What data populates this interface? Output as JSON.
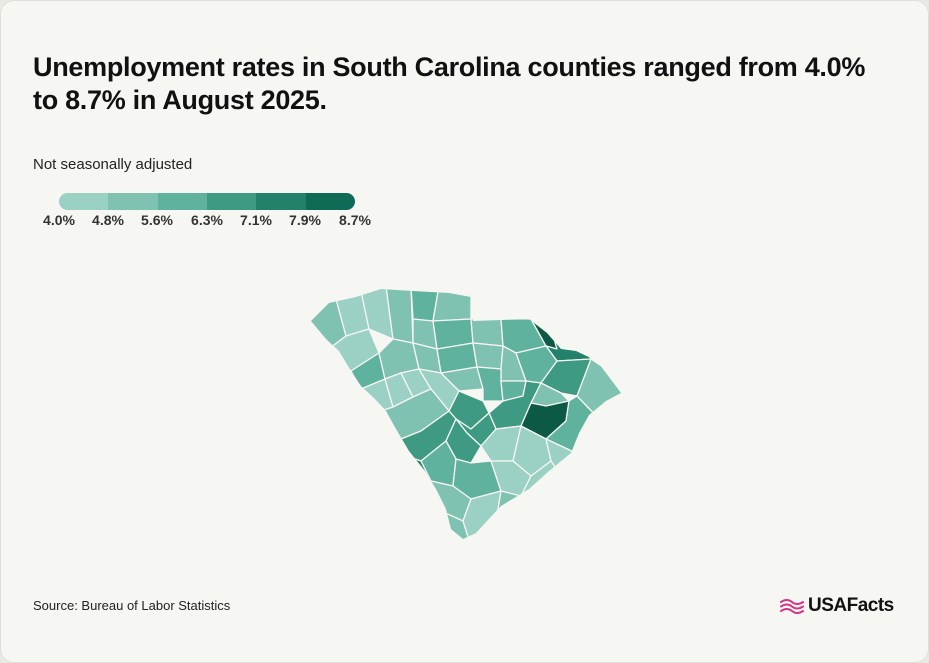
{
  "title": "Unemployment rates in South Carolina counties ranged from 4.0% to 8.7% in August 2025.",
  "subtitle": "Not seasonally adjusted",
  "legend": {
    "colors": [
      "#9bd0c4",
      "#7fc2b2",
      "#5fb29e",
      "#3e9a82",
      "#23806a",
      "#0f6b55"
    ],
    "ticks": [
      "4.0%",
      "4.8%",
      "5.6%",
      "6.3%",
      "7.1%",
      "7.9%",
      "8.7%"
    ]
  },
  "map": {
    "border_color": "#f6f6f2",
    "county_colors": [
      "#9bd0c4",
      "#7fc2b2",
      "#5fb29e",
      "#3e9a82",
      "#23806a",
      "#0c5a46"
    ]
  },
  "source": "Source: Bureau of Labor Statistics",
  "logo": {
    "text": "USAFacts",
    "accent": "#d63384"
  }
}
